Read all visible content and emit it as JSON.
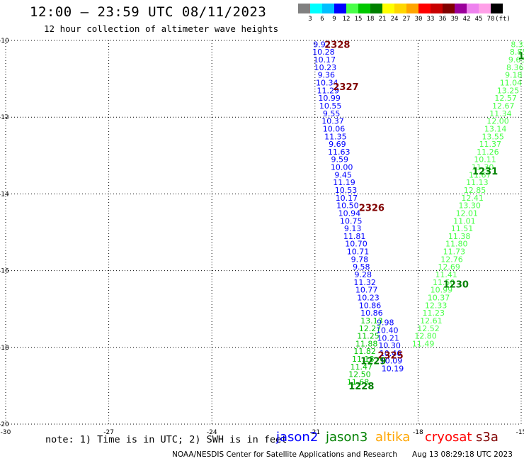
{
  "header": {
    "title": "12:00 – 23:59 UTC 08/11/2023",
    "subtitle": "12 hour collection of altimeter wave heights"
  },
  "color_legend": {
    "colors": [
      "#808080",
      "#00ffff",
      "#00bfff",
      "#0000ff",
      "#48ff48",
      "#00c800",
      "#008000",
      "#ffff00",
      "#ffd700",
      "#ffa500",
      "#ff0000",
      "#c80000",
      "#800000",
      "#9b009b",
      "#ee82ee",
      "#ffa0e8",
      "#000000"
    ],
    "labels": [
      "3",
      "6",
      "9",
      "12",
      "15",
      "18",
      "21",
      "24",
      "27",
      "30",
      "33",
      "36",
      "39",
      "42",
      "45",
      "70",
      "(ft)"
    ]
  },
  "chart_data": {
    "type": "scatter",
    "title": "12 hour collection of altimeter wave heights",
    "xlim": [
      -30,
      -15
    ],
    "ylim": [
      -20,
      -10
    ],
    "x_ticks": [
      "-30",
      "-27",
      "-24",
      "-21",
      "-18",
      "-15"
    ],
    "y_ticks": [
      "-10",
      "-12",
      "-14",
      "-16",
      "-18",
      "-20"
    ],
    "grid": true,
    "series": [
      {
        "name": "jason2",
        "color": "#0000ff",
        "points": [
          [
            -20.8,
            -10.1,
            "9.97"
          ],
          [
            -20.75,
            -10.3,
            "10.28"
          ],
          [
            -20.72,
            -10.5,
            "10.17"
          ],
          [
            -20.7,
            -10.7,
            "10.23"
          ],
          [
            -20.67,
            -10.9,
            "9.36"
          ],
          [
            -20.65,
            -11.1,
            "10.34"
          ],
          [
            -20.62,
            -11.3,
            "11.29"
          ],
          [
            -20.58,
            -11.5,
            "10.99"
          ],
          [
            -20.55,
            -11.7,
            "10.55"
          ],
          [
            -20.52,
            -11.9,
            "9.55"
          ],
          [
            -20.48,
            -12.1,
            "10.37"
          ],
          [
            -20.45,
            -12.3,
            "10.06"
          ],
          [
            -20.4,
            -12.5,
            "11.35"
          ],
          [
            -20.35,
            -12.7,
            "9.69"
          ],
          [
            -20.3,
            -12.9,
            "11.63"
          ],
          [
            -20.28,
            -13.1,
            "9.59"
          ],
          [
            -20.22,
            -13.3,
            "10.00"
          ],
          [
            -20.18,
            -13.5,
            "9.45"
          ],
          [
            -20.15,
            -13.7,
            "11.19"
          ],
          [
            -20.1,
            -13.9,
            "10.53"
          ],
          [
            -20.08,
            -14.1,
            "10.17"
          ],
          [
            -20.05,
            -14.3,
            "10.50"
          ],
          [
            -20.0,
            -14.5,
            "10.94"
          ],
          [
            -19.95,
            -14.7,
            "10.75"
          ],
          [
            -19.9,
            -14.9,
            "9.13"
          ],
          [
            -19.85,
            -15.1,
            "11.81"
          ],
          [
            -19.8,
            -15.3,
            "10.70"
          ],
          [
            -19.75,
            -15.5,
            "10.71"
          ],
          [
            -19.7,
            -15.7,
            "9.78"
          ],
          [
            -19.65,
            -15.9,
            "9.58"
          ],
          [
            -19.6,
            -16.1,
            "9.28"
          ],
          [
            -19.55,
            -16.3,
            "11.32"
          ],
          [
            -19.5,
            -16.5,
            "10.77"
          ],
          [
            -19.45,
            -16.7,
            "10.23"
          ],
          [
            -19.4,
            -16.9,
            "10.86"
          ],
          [
            -19.35,
            -17.1,
            "10.86"
          ]
        ]
      },
      {
        "name": "jason2",
        "color": "#0000ff",
        "points": [
          [
            -18.95,
            -17.35,
            "9.98"
          ],
          [
            -18.9,
            -17.55,
            "10.40"
          ],
          [
            -18.87,
            -17.75,
            "10.21"
          ],
          [
            -18.83,
            -17.95,
            "10.30"
          ],
          [
            -18.8,
            -18.15,
            "10.46"
          ],
          [
            -18.78,
            -18.35,
            "10.09"
          ],
          [
            -18.74,
            -18.55,
            "10.19"
          ]
        ]
      },
      {
        "name": "jason3",
        "color": "#00c800",
        "points": [
          [
            -19.35,
            -17.3,
            "13.13"
          ],
          [
            -19.4,
            -17.5,
            "12.27"
          ],
          [
            -19.45,
            -17.7,
            "11.25"
          ],
          [
            -19.5,
            -17.9,
            "11.88"
          ],
          [
            -19.55,
            -18.1,
            "11.82"
          ],
          [
            -19.6,
            -18.3,
            "11.18"
          ],
          [
            -19.65,
            -18.5,
            "11.47"
          ],
          [
            -19.7,
            -18.7,
            "12.50"
          ],
          [
            -19.75,
            -18.9,
            "11.68"
          ]
        ]
      },
      {
        "name": "jason3",
        "color": "#48ff48",
        "points": [
          [
            -15.05,
            -10.1,
            "8.33"
          ],
          [
            -15.08,
            -10.3,
            "8.85"
          ],
          [
            -15.12,
            -10.5,
            "9.63"
          ],
          [
            -15.18,
            -10.7,
            "8.36"
          ],
          [
            -15.22,
            -10.9,
            "9.18"
          ],
          [
            -15.3,
            -11.1,
            "11.04"
          ],
          [
            -15.38,
            -11.3,
            "13.25"
          ],
          [
            -15.45,
            -11.5,
            "12.57"
          ],
          [
            -15.52,
            -11.7,
            "12.67"
          ],
          [
            -15.6,
            -11.9,
            "11.34"
          ],
          [
            -15.68,
            -12.1,
            "12.00"
          ],
          [
            -15.75,
            -12.3,
            "13.14"
          ],
          [
            -15.82,
            -12.5,
            "13.55"
          ],
          [
            -15.9,
            -12.7,
            "11.37"
          ],
          [
            -15.97,
            -12.9,
            "11.26"
          ],
          [
            -16.05,
            -13.1,
            "10.11"
          ],
          [
            -16.12,
            -13.3,
            "11.30"
          ],
          [
            -16.2,
            -13.5,
            "11.67"
          ],
          [
            -16.28,
            -13.7,
            "11.13"
          ],
          [
            -16.35,
            -13.9,
            "12.85"
          ],
          [
            -16.42,
            -14.1,
            "12.41"
          ],
          [
            -16.5,
            -14.3,
            "13.30"
          ],
          [
            -16.58,
            -14.5,
            "12.01"
          ],
          [
            -16.65,
            -14.7,
            "11.01"
          ],
          [
            -16.72,
            -14.9,
            "11.51"
          ],
          [
            -16.8,
            -15.1,
            "11.38"
          ],
          [
            -16.88,
            -15.3,
            "11.80"
          ],
          [
            -16.95,
            -15.5,
            "11.73"
          ],
          [
            -17.02,
            -15.7,
            "12.76"
          ],
          [
            -17.1,
            -15.9,
            "12.69"
          ],
          [
            -17.18,
            -16.1,
            "11.41"
          ],
          [
            -17.25,
            -16.3,
            "11.50"
          ],
          [
            -17.32,
            -16.5,
            "10.99"
          ],
          [
            -17.4,
            -16.7,
            "10.37"
          ],
          [
            -17.48,
            -16.9,
            "12.33"
          ],
          [
            -17.55,
            -17.1,
            "11.23"
          ],
          [
            -17.62,
            -17.3,
            "12.61"
          ],
          [
            -17.7,
            -17.5,
            "12.52"
          ],
          [
            -17.78,
            -17.7,
            "12.80"
          ],
          [
            -17.85,
            -17.9,
            "11.49"
          ]
        ]
      }
    ],
    "time_labels": [
      {
        "text": "2328",
        "x": -20.35,
        "y": -10.1,
        "color": "#800000"
      },
      {
        "text": "2327",
        "x": -20.1,
        "y": -11.2,
        "color": "#800000"
      },
      {
        "text": "2326",
        "x": -19.35,
        "y": -14.35,
        "color": "#800000"
      },
      {
        "text": "2325",
        "x": -18.8,
        "y": -18.2,
        "color": "#800000"
      },
      {
        "text": "1231",
        "x": -16.05,
        "y": -13.4,
        "color": "#008000"
      },
      {
        "text": "1230",
        "x": -16.9,
        "y": -16.35,
        "color": "#008000"
      },
      {
        "text": "1229",
        "x": -19.3,
        "y": -18.35,
        "color": "#008000"
      },
      {
        "text": "1228",
        "x": -19.65,
        "y": -19.0,
        "color": "#008000"
      },
      {
        "text": "1",
        "x": -15.0,
        "y": -10.4,
        "color": "#008000"
      }
    ]
  },
  "note": "note:  1) Time is in UTC; 2) SWH is in feet",
  "satellites": [
    {
      "name": "jason2",
      "color": "#0000ff"
    },
    {
      "name": "jason3",
      "color": "#008000"
    },
    {
      "name": "altika",
      "color": "#ffa500"
    },
    {
      "name": "cryosat",
      "color": "#ff0000"
    },
    {
      "name": "s3a",
      "color": "#800000"
    }
  ],
  "footer": {
    "agency": "NOAA/NESDIS Center for Satellite Applications and Research",
    "timestamp": "Aug 13 08:29:18 UTC 2023"
  }
}
